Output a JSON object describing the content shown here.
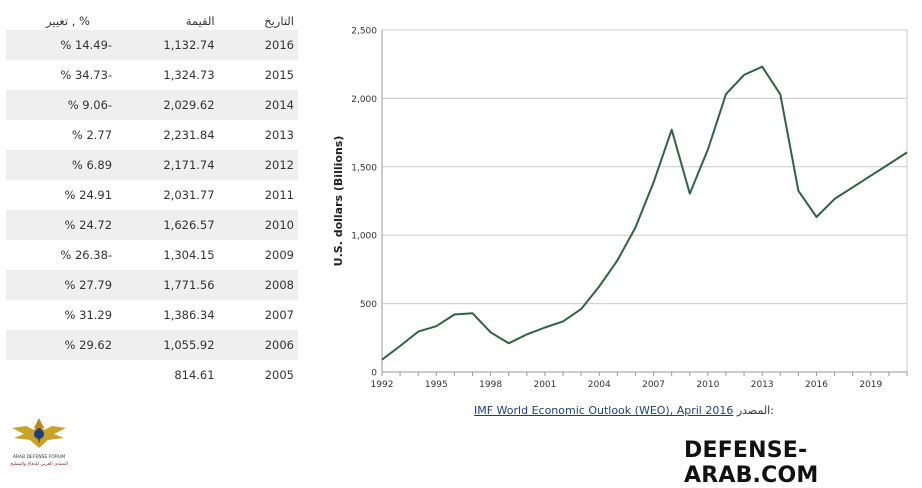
{
  "table": {
    "headers": {
      "change": "تغيير , %",
      "value": "القيمة",
      "date": "التاريخ"
    },
    "rows": [
      {
        "change": "% 14.49-",
        "value": "1,132.74",
        "date": "2016"
      },
      {
        "change": "% 34.73-",
        "value": "1,324.73",
        "date": "2015"
      },
      {
        "change": "% 9.06-",
        "value": "2,029.62",
        "date": "2014"
      },
      {
        "change": "% 2.77",
        "value": "2,231.84",
        "date": "2013"
      },
      {
        "change": "% 6.89",
        "value": "2,171.74",
        "date": "2012"
      },
      {
        "change": "% 24.91",
        "value": "2,031.77",
        "date": "2011"
      },
      {
        "change": "% 24.72",
        "value": "1,626.57",
        "date": "2010"
      },
      {
        "change": "% 26.38-",
        "value": "1,304.15",
        "date": "2009"
      },
      {
        "change": "% 27.79",
        "value": "1,771.56",
        "date": "2008"
      },
      {
        "change": "% 31.29",
        "value": "1,386.34",
        "date": "2007"
      },
      {
        "change": "% 29.62",
        "value": "1,055.92",
        "date": "2006"
      },
      {
        "change": "",
        "value": "814.61",
        "date": "2005"
      }
    ]
  },
  "chart_data": {
    "type": "line",
    "ylabel": "U.S. dollars (Billions)",
    "ylim": [
      0,
      2500
    ],
    "yticks": [
      0,
      500,
      1000,
      1500,
      2000,
      2500
    ],
    "ytick_labels": [
      "0",
      "500",
      "1,000",
      "1,500",
      "2,000",
      "2,500"
    ],
    "xlim": [
      1992,
      2021
    ],
    "xticks": [
      1992,
      1995,
      1998,
      2001,
      2004,
      2007,
      2010,
      2013,
      2016,
      2019
    ],
    "grid": "horizontal",
    "line_color": "#2e6347",
    "x": [
      1992,
      1993,
      1994,
      1995,
      1996,
      1997,
      1998,
      1999,
      2000,
      2001,
      2002,
      2003,
      2004,
      2005,
      2006,
      2007,
      2008,
      2009,
      2010,
      2011,
      2012,
      2013,
      2014,
      2015,
      2016,
      2017,
      2018,
      2019,
      2020,
      2021
    ],
    "y": [
      90,
      190,
      295,
      335,
      420,
      430,
      290,
      210,
      275,
      325,
      370,
      460,
      625,
      814.61,
      1055.92,
      1386.34,
      1771.56,
      1304.15,
      1626.57,
      2031.77,
      2171.74,
      2231.84,
      2029.62,
      1324.73,
      1132.74,
      1265,
      1350,
      1435,
      1520,
      1605
    ]
  },
  "source": {
    "label": "المصدر:",
    "link_text": "IMF World Economic Outlook (WEO), April 2016"
  },
  "site": {
    "name": "DEFENSE-ARAB.COM"
  },
  "logo": {
    "line1": "ARAB DEFENSE FORUM",
    "line2": "المنتدى العربي للدفاع والتسليح"
  }
}
